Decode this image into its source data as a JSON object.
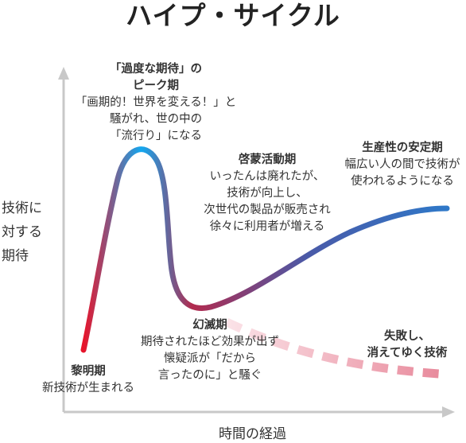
{
  "title": "ハイプ・サイクル",
  "axes": {
    "y_label_lines": [
      "技術に",
      "対する",
      "期待"
    ],
    "x_label": "時間の経過"
  },
  "colors": {
    "curve_start": "#e8142a",
    "curve_peak": "#12a8f0",
    "curve_trough": "#b22a4e",
    "curve_end": "#2f78c8",
    "fail_dash": "#f2b8c4",
    "axis": "#c8c8c8"
  },
  "phases": {
    "trigger": {
      "head": "黎明期",
      "lines": [
        "新技術が生まれる"
      ]
    },
    "peak": {
      "head_lines": [
        "「過度な期待」の",
        "ピーク期"
      ],
      "lines": [
        "「画期的！世界を変える！」と",
        "騒がれ、世の中の",
        "「流行り」になる"
      ]
    },
    "trough": {
      "head": "幻滅期",
      "lines": [
        "期待されたほど効果が出ず",
        "懐疑派が「だから",
        "言ったのに」と騒ぐ"
      ]
    },
    "slope": {
      "head": "啓蒙活動期",
      "lines": [
        "いったんは廃れたが、",
        "技術が向上し、",
        "次世代の製品が販売され",
        "徐々に利用者が増える"
      ]
    },
    "plateau": {
      "head": "生産性の安定期",
      "lines": [
        "幅広い人の間で技術が",
        "使われるようになる"
      ]
    },
    "failure": {
      "head_lines": [
        "失敗し、",
        "消えてゆく技術"
      ]
    }
  }
}
